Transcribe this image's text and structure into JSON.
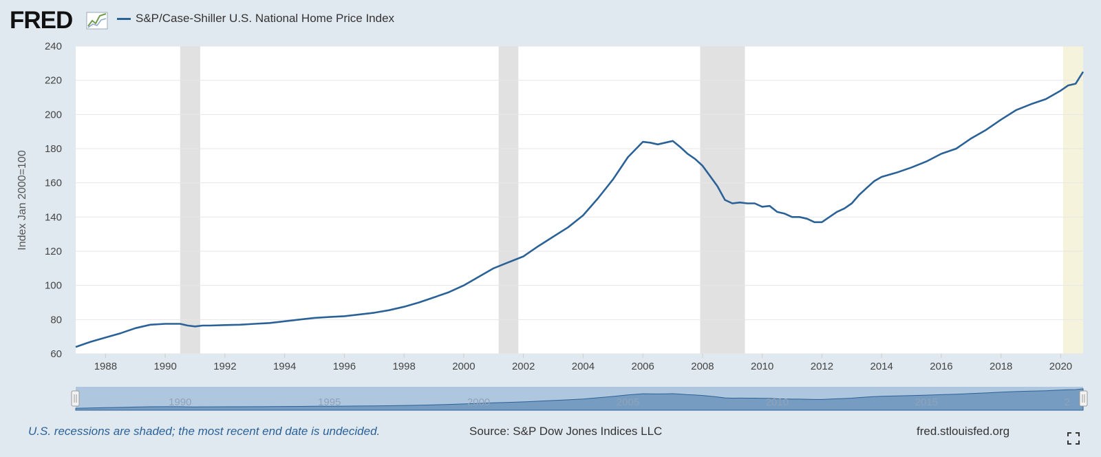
{
  "header": {
    "logo_text": "FRED",
    "series_label": "S&P/Case-Shiller U.S. National Home Price Index",
    "series_color": "#2a6197"
  },
  "footer": {
    "note": "U.S. recessions are shaded; the most recent end date is undecided.",
    "source": "Source: S&P Dow Jones Indices LLC",
    "site": "fred.stlouisfed.org",
    "fullscreen_icon": "fullscreen-icon"
  },
  "colors": {
    "background": "#e1e9f0",
    "plot_background": "#ffffff",
    "line": "#2a6197",
    "recession": "#e1e1e1",
    "undecided_recession": "#f5f3dc",
    "gridline": "#e6e6e6",
    "navigator": "#6d94bd"
  },
  "chart_data": {
    "type": "line",
    "title": "",
    "ylabel": "Index Jan 2000=100",
    "ylim": [
      60,
      240
    ],
    "xlim": [
      1987.0,
      2020.75
    ],
    "yticks": [
      60,
      80,
      100,
      120,
      140,
      160,
      180,
      200,
      220,
      240
    ],
    "xticks": [
      1988,
      1990,
      1992,
      1994,
      1996,
      1998,
      2000,
      2002,
      2004,
      2006,
      2008,
      2010,
      2012,
      2014,
      2016,
      2018,
      2020
    ],
    "grid": true,
    "legend": "top-left",
    "recessions": [
      {
        "start": 1990.5,
        "end": 1991.17
      },
      {
        "start": 2001.17,
        "end": 2001.83
      },
      {
        "start": 2007.92,
        "end": 2009.42
      },
      {
        "start": 2020.08,
        "end": 2020.75,
        "undecided": true
      }
    ],
    "navigator_labels": [
      "1990",
      "1995",
      "2000",
      "2005",
      "2010",
      "2015",
      "2"
    ],
    "series": [
      {
        "name": "S&P/Case-Shiller U.S. National Home Price Index",
        "x": [
          1987.0,
          1987.5,
          1988.0,
          1988.5,
          1989.0,
          1989.5,
          1990.0,
          1990.5,
          1990.75,
          1991.0,
          1991.25,
          1991.5,
          1992.0,
          1992.5,
          1993.0,
          1993.5,
          1994.0,
          1994.5,
          1995.0,
          1995.5,
          1996.0,
          1996.5,
          1997.0,
          1997.5,
          1998.0,
          1998.5,
          1999.0,
          1999.5,
          2000.0,
          2000.5,
          2001.0,
          2001.5,
          2002.0,
          2002.5,
          2003.0,
          2003.5,
          2004.0,
          2004.5,
          2005.0,
          2005.5,
          2006.0,
          2006.25,
          2006.5,
          2006.75,
          2007.0,
          2007.25,
          2007.5,
          2007.75,
          2008.0,
          2008.25,
          2008.5,
          2008.75,
          2009.0,
          2009.25,
          2009.5,
          2009.75,
          2010.0,
          2010.25,
          2010.5,
          2010.75,
          2011.0,
          2011.25,
          2011.5,
          2011.75,
          2012.0,
          2012.25,
          2012.5,
          2012.75,
          2013.0,
          2013.25,
          2013.5,
          2013.75,
          2014.0,
          2014.5,
          2015.0,
          2015.5,
          2016.0,
          2016.5,
          2017.0,
          2017.5,
          2018.0,
          2018.5,
          2019.0,
          2019.5,
          2020.0,
          2020.25,
          2020.5,
          2020.75
        ],
        "values": [
          64,
          67,
          69.5,
          72,
          75,
          77,
          77.5,
          77.5,
          76.5,
          76,
          76.5,
          76.5,
          76.8,
          77,
          77.5,
          78,
          79,
          80,
          81,
          81.5,
          82,
          83,
          84,
          85.5,
          87.5,
          90,
          93,
          96,
          100,
          105,
          110,
          113.5,
          117,
          123,
          128.5,
          134,
          141,
          151,
          162,
          175,
          184,
          183.5,
          182.5,
          183.5,
          184.5,
          181,
          177,
          174,
          170,
          164,
          158,
          150,
          148,
          148.5,
          148,
          148,
          146,
          146.5,
          143,
          142,
          140,
          140,
          139,
          137,
          137,
          140,
          143,
          145,
          148,
          153,
          157,
          161,
          163.5,
          166,
          169,
          172.5,
          177,
          180,
          186,
          191,
          197,
          202.5,
          206,
          209,
          214,
          217,
          218,
          225
        ]
      }
    ]
  }
}
